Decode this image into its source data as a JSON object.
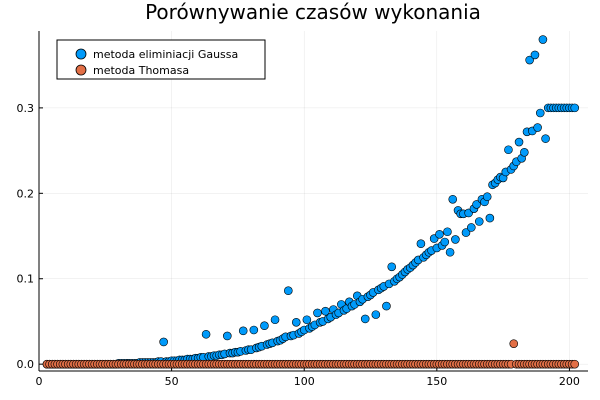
{
  "chart_data": {
    "type": "scatter",
    "title": "Porównywanie czasów wykonania",
    "xlabel": "",
    "ylabel": "",
    "xlim": [
      0,
      207
    ],
    "ylim": [
      -0.008,
      0.39
    ],
    "x_ticks": [
      0,
      50,
      100,
      150,
      200
    ],
    "y_ticks": [
      0.0,
      0.1,
      0.2,
      0.3
    ],
    "x_tick_labels": [
      "0",
      "50",
      "100",
      "150",
      "200"
    ],
    "y_tick_labels": [
      "0.0",
      "0.1",
      "0.2",
      "0.3"
    ],
    "grid": true,
    "legend_position": "top-left",
    "series": [
      {
        "name": "metoda eliminiacji Gaussa",
        "color": "#009AFA",
        "x_range": [
          3,
          202
        ],
        "values": [
          0.0,
          0.0,
          0.0,
          0.0,
          0.0,
          0.0,
          0.0,
          0.0,
          0.0,
          0.0,
          0.0,
          0.0,
          0.0,
          0.0,
          0.0,
          0.0,
          0.0,
          0.0,
          0.0,
          0.0,
          0.0,
          0.0,
          0.0,
          0.0,
          0.0,
          0.0,
          0.0,
          0.001,
          0.001,
          0.001,
          0.001,
          0.001,
          0.001,
          0.001,
          0.001,
          0.002,
          0.002,
          0.002,
          0.002,
          0.002,
          0.002,
          0.002,
          0.003,
          0.003,
          0.026,
          0.003,
          0.003,
          0.004,
          0.004,
          0.004,
          0.005,
          0.005,
          0.005,
          0.006,
          0.006,
          0.006,
          0.007,
          0.007,
          0.008,
          0.008,
          0.035,
          0.009,
          0.009,
          0.01,
          0.01,
          0.011,
          0.011,
          0.012,
          0.033,
          0.013,
          0.013,
          0.014,
          0.014,
          0.015,
          0.039,
          0.016,
          0.017,
          0.017,
          0.04,
          0.019,
          0.02,
          0.021,
          0.045,
          0.023,
          0.024,
          0.025,
          0.052,
          0.027,
          0.028,
          0.03,
          0.032,
          0.086,
          0.033,
          0.034,
          0.049,
          0.036,
          0.038,
          0.04,
          0.052,
          0.042,
          0.044,
          0.046,
          0.06,
          0.049,
          0.05,
          0.062,
          0.053,
          0.055,
          0.064,
          0.058,
          0.06,
          0.07,
          0.063,
          0.065,
          0.073,
          0.068,
          0.07,
          0.08,
          0.073,
          0.076,
          0.053,
          0.079,
          0.081,
          0.084,
          0.058,
          0.087,
          0.089,
          0.091,
          0.068,
          0.094,
          0.114,
          0.097,
          0.1,
          0.102,
          0.105,
          0.108,
          0.111,
          0.113,
          0.116,
          0.119,
          0.122,
          0.141,
          0.125,
          0.128,
          0.131,
          0.133,
          0.147,
          0.136,
          0.152,
          0.139,
          0.143,
          0.155,
          0.131,
          0.193,
          0.146,
          0.18,
          0.176,
          0.176,
          0.154,
          0.177,
          0.16,
          0.182,
          0.187,
          0.167,
          0.193,
          0.19,
          0.196,
          0.171,
          0.21,
          0.212,
          0.216,
          0.219,
          0.218,
          0.225,
          0.251,
          0.228,
          0.232,
          0.237,
          0.26,
          0.241,
          0.248,
          0.272,
          0.356,
          0.273,
          0.362,
          0.277,
          0.294,
          0.38,
          0.264,
          0.3,
          0.3,
          0.3,
          0.3,
          0.3,
          0.3,
          0.3,
          0.3,
          0.3,
          0.3,
          0.3,
          0.3,
          0.3,
          0.3,
          0.3,
          0.3,
          0.3,
          0.3,
          0.3,
          0.3,
          0.3,
          0.3
        ]
      },
      {
        "name": "metoda Thomasa",
        "color": "#E26F46",
        "x_range": [
          3,
          202
        ],
        "outliers": [
          {
            "x": 179,
            "y": 0.024
          }
        ],
        "baseline": 0.0
      }
    ]
  }
}
